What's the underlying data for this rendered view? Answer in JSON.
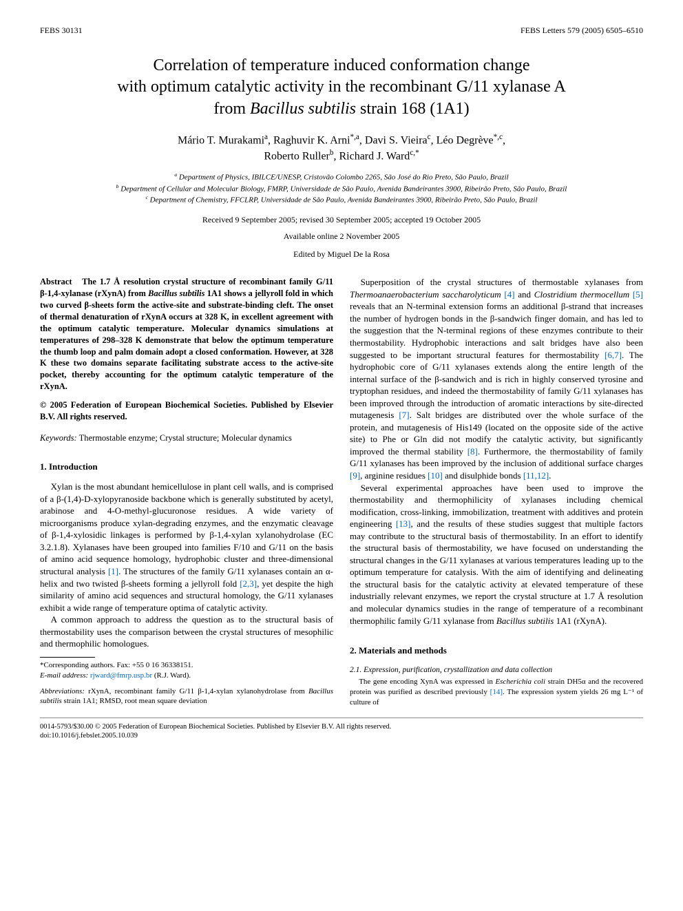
{
  "header": {
    "left": "FEBS 30131",
    "right": "FEBS Letters 579 (2005) 6505–6510"
  },
  "title": {
    "line1": "Correlation of temperature induced conformation change",
    "line2": "with optimum catalytic activity in the recombinant G/11 xylanase A",
    "line3_pre": "from ",
    "line3_italic": "Bacillus subtilis",
    "line3_post": " strain 168 (1A1)"
  },
  "authors": {
    "a1": "Mário T. Murakami",
    "a1_sup": "a",
    "a2": "Raghuvir K. Arni",
    "a2_sup": "*,a",
    "a3": "Davi S. Vieira",
    "a3_sup": "c",
    "a4": "Léo Degrève",
    "a4_sup": "*,c",
    "a5": "Roberto Ruller",
    "a5_sup": "b",
    "a6": "Richard J. Ward",
    "a6_sup": "c,*"
  },
  "affiliations": {
    "a": "Department of Physics, IBILCE/UNESP, Cristovão Colombo 2265, São José do Rio Preto, São Paulo, Brazil",
    "b": "Department of Cellular and Molecular Biology, FMRP, Universidade de São Paulo, Avenida Bandeirantes 3900, Ribeirão Preto, São Paulo, Brazil",
    "c": "Department of Chemistry, FFCLRP, Universidade de São Paulo, Avenida Bandeirantes 3900, Ribeirão Preto, São Paulo, Brazil"
  },
  "dates": "Received 9 September 2005; revised 30 September 2005; accepted 19 October 2005",
  "available": "Available online 2 November 2005",
  "editor": "Edited by Miguel De la Rosa",
  "abstract": {
    "label": "Abstract",
    "body": "The 1.7 Å resolution crystal structure of recombinant family G/11 β-1,4-xylanase (rXynA) from Bacillus subtilis 1A1 shows a jellyroll fold in which two curved β-sheets form the active-site and substrate-binding cleft. The onset of thermal denaturation of rXynA occurs at 328 K, in excellent agreement with the optimum catalytic temperature. Molecular dynamics simulations at temperatures of 298–328 K demonstrate that below the optimum temperature the thumb loop and palm domain adopt a closed conformation. However, at 328 K these two domains separate facilitating substrate access to the active-site pocket, thereby accounting for the optimum catalytic temperature of the rXynA."
  },
  "copyright": "© 2005 Federation of European Biochemical Societies. Published by Elsevier B.V. All rights reserved.",
  "keywords": {
    "label": "Keywords:",
    "text": "Thermostable enzyme; Crystal structure; Molecular dynamics"
  },
  "section1": {
    "heading": "1. Introduction",
    "p1": "Xylan is the most abundant hemicellulose in plant cell walls, and is comprised of a β-(1,4)-D-xylopyranoside backbone which is generally substituted by acetyl, arabinose and 4-O-methyl-glucuronose residues. A wide variety of microorganisms produce xylan-degrading enzymes, and the enzymatic cleavage of β-1,4-xylosidic linkages is performed by β-1,4-xylan xylanohydrolase (EC 3.2.1.8). Xylanases have been grouped into families F/10 and G/11 on the basis of amino acid sequence homology, hydrophobic cluster and three-dimensional structural analysis [1]. The structures of the family G/11 xylanases contain an α-helix and two twisted β-sheets forming a jellyroll fold [2,3], yet despite the high similarity of amino acid sequences and structural homology, the G/11 xylanases exhibit a wide range of temperature optima of catalytic activity.",
    "p2": "A common approach to address the question as to the structural basis of thermostability uses the comparison between the crystal structures of mesophilic and thermophilic homologues.",
    "p3": "Superposition of the crystal structures of thermostable xylanases from Thermoanaerobacterium saccharolyticum [4] and Clostridium thermocellum [5] reveals that an N-terminal extension forms an additional β-strand that increases the number of hydrogen bonds in the β-sandwich finger domain, and has led to the suggestion that the N-terminal regions of these enzymes contribute to their thermostability. Hydrophobic interactions and salt bridges have also been suggested to be important structural features for thermostability [6,7]. The hydrophobic core of G/11 xylanases extends along the entire length of the internal surface of the β-sandwich and is rich in highly conserved tyrosine and tryptophan residues, and indeed the thermostability of family G/11 xylanases has been improved through the introduction of aromatic interactions by site-directed mutagenesis [7]. Salt bridges are distributed over the whole surface of the protein, and mutagenesis of His149 (located on the opposite side of the active site) to Phe or Gln did not modify the catalytic activity, but significantly improved the thermal stability [8]. Furthermore, the thermostability of family G/11 xylanases has been improved by the inclusion of additional surface charges [9], arginine residues [10] and disulphide bonds [11,12].",
    "p4": "Several experimental approaches have been used to improve the thermostability and thermophilicity of xylanases including chemical modification, cross-linking, immobilization, treatment with additives and protein engineering [13], and the results of these studies suggest that multiple factors may contribute to the structural basis of thermostability. In an effort to identify the structural basis of thermostability, we have focused on understanding the structural changes in the G/11 xylanases at various temperatures leading up to the optimum temperature for catalysis. With the aim of identifying and delineating the structural basis for the catalytic activity at elevated temperature of these industrially relevant enzymes, we report the crystal structure at 1.7 Å resolution and molecular dynamics studies in the range of temperature of a recombinant thermophilic family G/11 xylanase from Bacillus subtilis 1A1 (rXynA)."
  },
  "section2": {
    "heading": "2. Materials and methods",
    "sub1": "2.1. Expression, purification, crystallization and data collection",
    "p1": "The gene encoding XynA was expressed in Escherichia coli strain DH5α and the recovered protein was purified as described previously [14]. The expression system yields 26 mg L⁻¹ of culture of"
  },
  "footnotes": {
    "corr_label": "*Corresponding authors. Fax: +55 0 16 36338151.",
    "email_label": "E-mail address:",
    "email": "rjward@fmrp.usp.br",
    "email_name": "(R.J. Ward).",
    "abbrev_label": "Abbreviations:",
    "abbrev_text": "rXynA, recombinant family G/11 β-1,4-xylan xylanohydrolase from Bacillus subtilis strain 1A1; RMSD, root mean square deviation"
  },
  "footer": {
    "line1": "0014-5793/$30.00 © 2005 Federation of European Biochemical Societies. Published by Elsevier B.V. All rights reserved.",
    "line2": "doi:10.1016/j.febslet.2005.10.039"
  },
  "refs": {
    "r1": "[1]",
    "r2": "[2,3]",
    "r4": "[4]",
    "r5": "[5]",
    "r6": "[6,7]",
    "r7": "[7]",
    "r8": "[8]",
    "r9": "[9]",
    "r10": "[10]",
    "r11": "[11,12]",
    "r13": "[13]",
    "r14": "[14]"
  },
  "colors": {
    "link": "#0066cc",
    "text": "#000000",
    "bg": "#ffffff"
  }
}
